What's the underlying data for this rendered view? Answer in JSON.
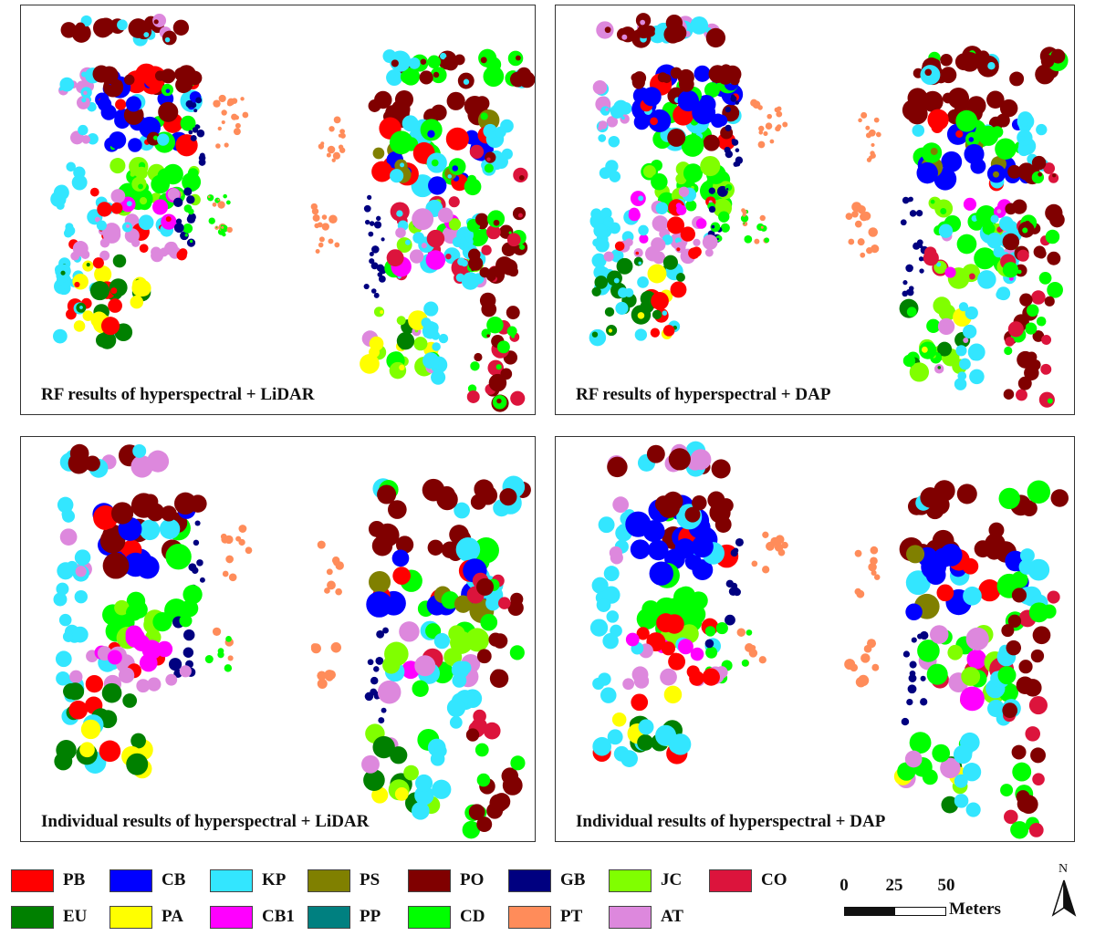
{
  "panels": [
    {
      "caption": "RF results of hyperspectral + LiDAR",
      "mode": "rf"
    },
    {
      "caption": "RF results of hyperspectral + DAP",
      "mode": "rf"
    },
    {
      "caption": "Individual results of hyperspectral + LiDAR",
      "mode": "individual"
    },
    {
      "caption": "Individual results of hyperspectral + DAP",
      "mode": "individual"
    }
  ],
  "legend": [
    {
      "code": "PB",
      "color": "#ff0000"
    },
    {
      "code": "CB",
      "color": "#0000ff"
    },
    {
      "code": "KP",
      "color": "#33e6ff"
    },
    {
      "code": "PS",
      "color": "#808000"
    },
    {
      "code": "PO",
      "color": "#800000"
    },
    {
      "code": "GB",
      "color": "#000080"
    },
    {
      "code": "JC",
      "color": "#80ff00"
    },
    {
      "code": "CO",
      "color": "#dc143c"
    },
    {
      "code": "EU",
      "color": "#008000"
    },
    {
      "code": "PA",
      "color": "#ffff00"
    },
    {
      "code": "CB1",
      "color": "#ff00ff"
    },
    {
      "code": "PP",
      "color": "#008080"
    },
    {
      "code": "CD",
      "color": "#00ff00"
    },
    {
      "code": "PT",
      "color": "#ff8c5a"
    },
    {
      "code": "AT",
      "color": "#dd88dd"
    }
  ],
  "scale": {
    "ticks": [
      "0",
      "25",
      "50"
    ],
    "units": "Meters"
  },
  "north_arrow": {
    "label": "N",
    "icon": "north-arrow-icon"
  }
}
